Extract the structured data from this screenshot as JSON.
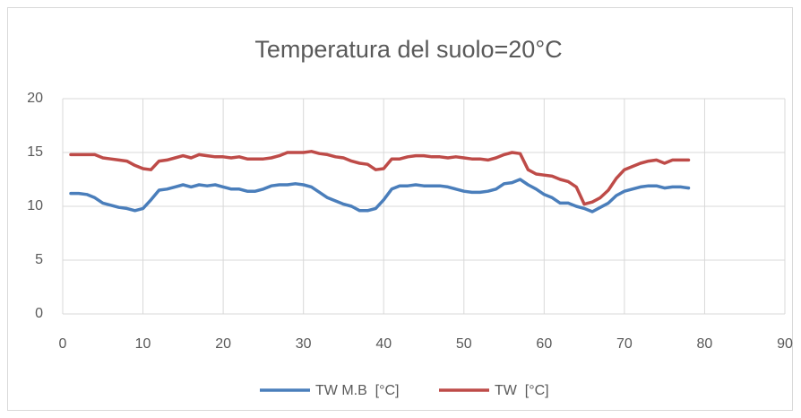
{
  "chart_data": {
    "type": "line",
    "title": "Temperatura del suolo=20°C",
    "x": [
      1,
      2,
      3,
      4,
      5,
      6,
      7,
      8,
      9,
      10,
      11,
      12,
      13,
      14,
      15,
      16,
      17,
      18,
      19,
      20,
      21,
      22,
      23,
      24,
      25,
      26,
      27,
      28,
      29,
      30,
      31,
      32,
      33,
      34,
      35,
      36,
      37,
      38,
      39,
      40,
      41,
      42,
      43,
      44,
      45,
      46,
      47,
      48,
      49,
      50,
      51,
      52,
      53,
      54,
      55,
      56,
      57,
      58,
      59,
      60,
      61,
      62,
      63,
      64,
      65,
      66,
      67,
      68,
      69,
      70,
      71,
      72,
      73,
      74,
      75,
      76,
      77,
      78
    ],
    "series": [
      {
        "name": "TW M.B  [°C]",
        "color": "#4a7ebb",
        "values": [
          11.2,
          11.2,
          11.1,
          10.8,
          10.3,
          10.1,
          9.9,
          9.8,
          9.6,
          9.8,
          10.6,
          11.5,
          11.6,
          11.8,
          12.0,
          11.8,
          12.0,
          11.9,
          12.0,
          11.8,
          11.6,
          11.6,
          11.4,
          11.4,
          11.6,
          11.9,
          12.0,
          12.0,
          12.1,
          12.0,
          11.8,
          11.3,
          10.8,
          10.5,
          10.2,
          10.0,
          9.6,
          9.6,
          9.8,
          10.6,
          11.6,
          11.9,
          11.9,
          12.0,
          11.9,
          11.9,
          11.9,
          11.8,
          11.6,
          11.4,
          11.3,
          11.3,
          11.4,
          11.6,
          12.1,
          12.2,
          12.5,
          12.0,
          11.6,
          11.1,
          10.8,
          10.3,
          10.3,
          10.0,
          9.8,
          9.5,
          9.9,
          10.3,
          11.0,
          11.4,
          11.6,
          11.8,
          11.9,
          11.9,
          11.7,
          11.8,
          11.8,
          11.7
        ]
      },
      {
        "name": "TW  [°C]",
        "color": "#be4b48",
        "values": [
          14.8,
          14.8,
          14.8,
          14.8,
          14.5,
          14.4,
          14.3,
          14.2,
          13.8,
          13.5,
          13.4,
          14.2,
          14.3,
          14.5,
          14.7,
          14.5,
          14.8,
          14.7,
          14.6,
          14.6,
          14.5,
          14.6,
          14.4,
          14.4,
          14.4,
          14.5,
          14.7,
          15.0,
          15.0,
          15.0,
          15.1,
          14.9,
          14.8,
          14.6,
          14.5,
          14.2,
          14.0,
          13.9,
          13.4,
          13.5,
          14.4,
          14.4,
          14.6,
          14.7,
          14.7,
          14.6,
          14.6,
          14.5,
          14.6,
          14.5,
          14.4,
          14.4,
          14.3,
          14.5,
          14.8,
          15.0,
          14.9,
          13.4,
          13.0,
          12.9,
          12.8,
          12.5,
          12.3,
          11.8,
          10.2,
          10.4,
          10.8,
          11.5,
          12.6,
          13.4,
          13.7,
          14.0,
          14.2,
          14.3,
          14.0,
          14.3,
          14.3,
          14.3
        ]
      }
    ],
    "xlim": [
      0,
      90
    ],
    "xticks": [
      0,
      10,
      20,
      30,
      40,
      50,
      60,
      70,
      80,
      90
    ],
    "ylim": [
      0,
      20
    ],
    "yticks": [
      0,
      5,
      10,
      15,
      20
    ],
    "grid": true,
    "legend": "bottom"
  }
}
